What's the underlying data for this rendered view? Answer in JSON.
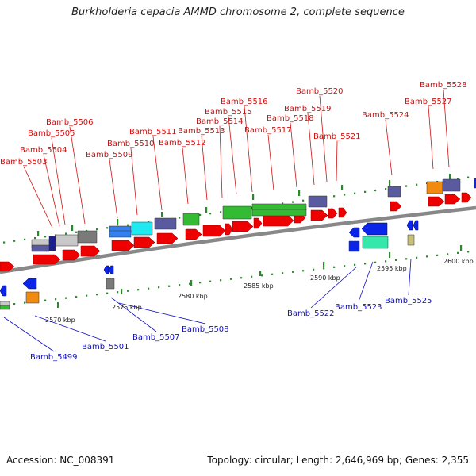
{
  "title": "Burkholderia cepacia AMMD chromosome 2, complete sequence",
  "footer": {
    "accession": "Accession: NC_008391",
    "topology": "Topology: circular; Length: 2,646,969 bp; Genes: 2,355"
  },
  "colors": {
    "plus_label": "#d01010",
    "minus_label": "#1010c0",
    "backbone": "#888888",
    "tick": "#2a8a2a",
    "red_arrow": "#ee0000",
    "blue_arrow": "#0a25e8",
    "purple": "#5a5aa0",
    "orange": "#f08a10",
    "green": "#33bb33",
    "cyan": "#1ee8f0",
    "teal": "#33e8aa",
    "light_blue": "#3380ee",
    "gray": "#7a7a7a",
    "light_gray": "#c8c8c8",
    "navy": "#1a2090",
    "khaki": "#c8c080"
  },
  "scale_labels": [
    "2570 kbp",
    "2575 kbp",
    "2580 kbp",
    "2585 kbp",
    "2590 kbp",
    "2595 kbp",
    "2600 kbp"
  ],
  "plus_genes": [
    "Bamb_5503",
    "Bamb_5504",
    "Bamb_5505",
    "Bamb_5506",
    "Bamb_5509",
    "Bamb_5510",
    "Bamb_5511",
    "Bamb_5512",
    "Bamb_5513",
    "Bamb_5514",
    "Bamb_5515",
    "Bamb_5516",
    "Bamb_5517",
    "Bamb_5518",
    "Bamb_5519",
    "Bamb_5520",
    "Bamb_5521",
    "Bamb_5524",
    "Bamb_5527",
    "Bamb_5528"
  ],
  "minus_genes": [
    "Bamb_5499",
    "Bamb_5501",
    "Bamb_5507",
    "Bamb_5508",
    "Bamb_5522",
    "Bamb_5523",
    "Bamb_5525"
  ]
}
